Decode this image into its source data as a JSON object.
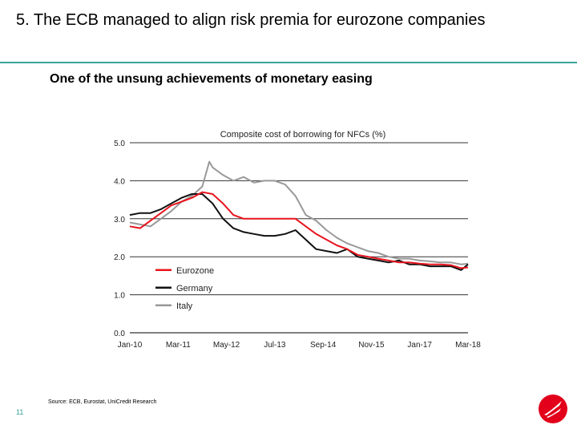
{
  "slide": {
    "title": "5. The ECB managed to align risk premia for eurozone companies",
    "subtitle": "One of the unsung achievements of monetary easing",
    "source": "Source: ECB, Eurostat, UniCredit Research",
    "page_number": "11",
    "accent_color": "#36a39a",
    "logo_color": "#e2001a"
  },
  "chart_data": {
    "type": "line",
    "title": "Composite cost of borrowing for NFCs (%)",
    "xlabel": "",
    "ylabel": "",
    "ylim": [
      0,
      5
    ],
    "yticks": [
      0.0,
      1.0,
      2.0,
      3.0,
      4.0,
      5.0
    ],
    "ytick_labels": [
      "0.0",
      "1.0",
      "2.0",
      "3.0",
      "4.0",
      "5.0"
    ],
    "xlim": [
      2010.0,
      2018.167
    ],
    "xticks": [
      2010.0,
      2011.167,
      2012.333,
      2013.5,
      2014.667,
      2015.833,
      2017.0,
      2018.167
    ],
    "xtick_labels": [
      "Jan-10",
      "Mar-11",
      "May-12",
      "Jul-13",
      "Sep-14",
      "Nov-15",
      "Jan-17",
      "Mar-18"
    ],
    "grid": "horizontal",
    "legend_position": "bottom-left",
    "series": [
      {
        "name": "Eurozone",
        "color": "#e8141e",
        "x": [
          2010.0,
          2010.25,
          2010.5,
          2010.75,
          2011.0,
          2011.25,
          2011.5,
          2011.75,
          2012.0,
          2012.25,
          2012.5,
          2012.75,
          2013.0,
          2013.25,
          2013.5,
          2013.75,
          2014.0,
          2014.25,
          2014.5,
          2014.75,
          2015.0,
          2015.25,
          2015.5,
          2015.75,
          2016.0,
          2016.25,
          2016.5,
          2016.75,
          2017.0,
          2017.25,
          2017.5,
          2017.75,
          2018.0,
          2018.167
        ],
        "y": [
          2.8,
          2.75,
          2.95,
          3.15,
          3.35,
          3.45,
          3.55,
          3.7,
          3.65,
          3.4,
          3.1,
          3.0,
          3.0,
          3.0,
          3.0,
          3.0,
          3.0,
          2.8,
          2.6,
          2.45,
          2.3,
          2.2,
          2.05,
          2.0,
          1.95,
          1.9,
          1.85,
          1.85,
          1.82,
          1.8,
          1.8,
          1.78,
          1.7,
          1.72
        ]
      },
      {
        "name": "Germany",
        "color": "#111111",
        "x": [
          2010.0,
          2010.25,
          2010.5,
          2010.75,
          2011.0,
          2011.25,
          2011.5,
          2011.75,
          2012.0,
          2012.25,
          2012.5,
          2012.75,
          2013.0,
          2013.25,
          2013.5,
          2013.75,
          2014.0,
          2014.25,
          2014.5,
          2014.75,
          2015.0,
          2015.25,
          2015.5,
          2015.75,
          2016.0,
          2016.25,
          2016.5,
          2016.75,
          2017.0,
          2017.25,
          2017.5,
          2017.75,
          2018.0,
          2018.167
        ],
        "y": [
          3.1,
          3.15,
          3.15,
          3.25,
          3.4,
          3.55,
          3.65,
          3.65,
          3.4,
          3.0,
          2.75,
          2.65,
          2.6,
          2.55,
          2.55,
          2.6,
          2.7,
          2.45,
          2.2,
          2.15,
          2.1,
          2.2,
          2.0,
          1.95,
          1.9,
          1.85,
          1.9,
          1.8,
          1.8,
          1.75,
          1.75,
          1.75,
          1.65,
          1.8
        ]
      },
      {
        "name": "Italy",
        "color": "#999999",
        "x": [
          2010.0,
          2010.25,
          2010.5,
          2010.75,
          2011.0,
          2011.25,
          2011.5,
          2011.75,
          2011.92,
          2012.0,
          2012.25,
          2012.5,
          2012.75,
          2013.0,
          2013.25,
          2013.5,
          2013.75,
          2014.0,
          2014.25,
          2014.5,
          2014.75,
          2015.0,
          2015.25,
          2015.5,
          2015.75,
          2016.0,
          2016.25,
          2016.5,
          2016.75,
          2017.0,
          2017.25,
          2017.5,
          2017.75,
          2018.0,
          2018.167
        ],
        "y": [
          2.9,
          2.85,
          2.8,
          3.0,
          3.2,
          3.45,
          3.6,
          3.85,
          4.5,
          4.35,
          4.15,
          4.0,
          4.1,
          3.95,
          4.0,
          4.0,
          3.9,
          3.6,
          3.1,
          2.95,
          2.7,
          2.5,
          2.35,
          2.25,
          2.15,
          2.1,
          2.0,
          1.95,
          1.95,
          1.9,
          1.88,
          1.85,
          1.85,
          1.8,
          1.82
        ]
      }
    ]
  }
}
